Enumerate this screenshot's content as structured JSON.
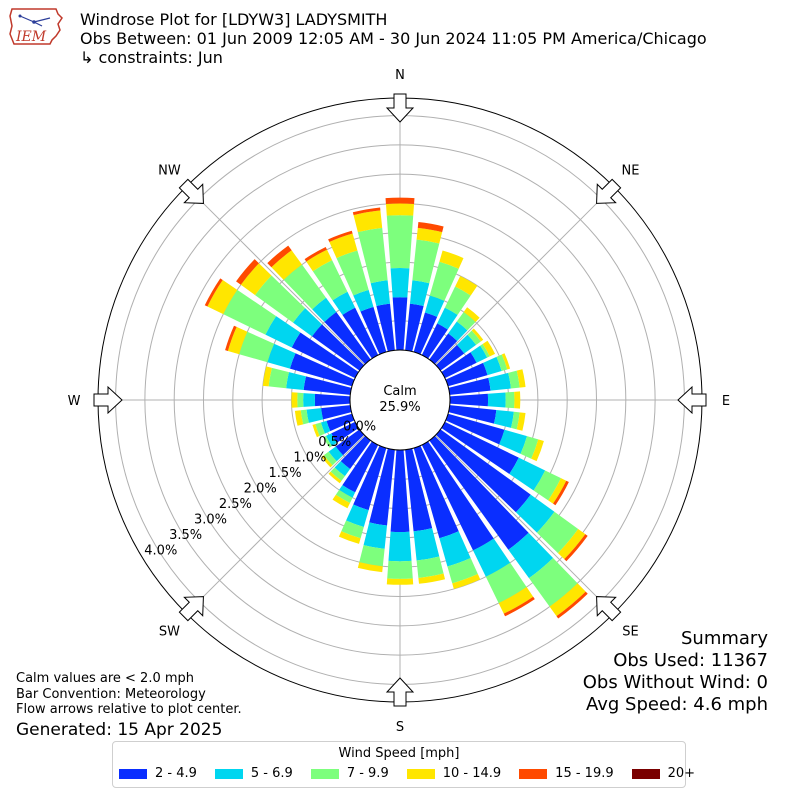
{
  "header": {
    "title_line1": "Windrose Plot for [LDYW3] LADYSMITH",
    "title_line2": "Obs Between: 01 Jun 2009 12:05 AM - 30 Jun 2024 11:05 PM America/Chicago",
    "title_line3": "↳ constraints: Jun",
    "logo_text": "IEM"
  },
  "summary": {
    "heading": "Summary",
    "obs_used": "Obs Used: 11367",
    "obs_without_wind": "Obs Without Wind: 0",
    "avg_speed": "Avg Speed: 4.6 mph"
  },
  "notes": {
    "calm_note": "Calm values are < 2.0 mph",
    "bar_convention": "Bar Convention: Meteorology",
    "flow_note": "Flow arrows relative to plot center.",
    "generated": "Generated: 15 Apr 2025"
  },
  "chart_data": {
    "type": "windrose",
    "calm_label": "Calm",
    "calm_percent": "25.9%",
    "radial_unit": "%",
    "radial_ticks": [
      "0.0%",
      "0.5%",
      "1.0%",
      "1.5%",
      "2.0%",
      "2.5%",
      "3.0%",
      "3.5%",
      "4.0%"
    ],
    "radial_max": 4.3,
    "direction_labels": [
      "N",
      "NE",
      "E",
      "SE",
      "S",
      "SW",
      "W",
      "NW"
    ],
    "directions_deg": [
      0,
      10,
      20,
      30,
      40,
      50,
      60,
      70,
      80,
      90,
      100,
      110,
      120,
      130,
      140,
      150,
      160,
      170,
      180,
      190,
      200,
      210,
      220,
      230,
      240,
      250,
      260,
      270,
      280,
      290,
      300,
      310,
      320,
      330,
      340,
      350
    ],
    "legend": {
      "title": "Wind Speed [mph]",
      "bins": [
        "2 - 4.9",
        "5 - 6.9",
        "7 - 9.9",
        "10 - 14.9",
        "15 - 19.9",
        "20+"
      ],
      "colors": [
        "#0a2eff",
        "#00d6f0",
        "#7dff7d",
        "#ffe600",
        "#ff4a00",
        "#7a0000"
      ]
    },
    "series_note": "cumulative percent at outer edge of each speed bin, per direction",
    "cumulative": [
      [
        0.9,
        1.4,
        2.3,
        2.5,
        2.6,
        2.6
      ],
      [
        0.8,
        1.2,
        1.9,
        2.1,
        2.2,
        2.2
      ],
      [
        0.7,
        1.0,
        1.6,
        1.8,
        1.8,
        1.8
      ],
      [
        0.6,
        0.9,
        1.3,
        1.5,
        1.5,
        1.5
      ],
      [
        0.55,
        0.8,
        1.0,
        1.1,
        1.1,
        1.1
      ],
      [
        0.5,
        0.75,
        0.85,
        0.9,
        0.9,
        0.9
      ],
      [
        0.6,
        0.8,
        0.85,
        0.95,
        0.95,
        0.95
      ],
      [
        0.7,
        0.95,
        1.05,
        1.1,
        1.1,
        1.1
      ],
      [
        0.7,
        1.05,
        1.2,
        1.3,
        1.3,
        1.3
      ],
      [
        0.65,
        0.95,
        1.1,
        1.2,
        1.2,
        1.2
      ],
      [
        0.8,
        1.1,
        1.2,
        1.3,
        1.3,
        1.3
      ],
      [
        1.0,
        1.4,
        1.6,
        1.7,
        1.7,
        1.7
      ],
      [
        1.4,
        1.9,
        2.2,
        2.3,
        2.35,
        2.35
      ],
      [
        1.9,
        2.4,
        2.9,
        3.05,
        3.1,
        3.1
      ],
      [
        2.3,
        2.9,
        3.5,
        3.7,
        3.75,
        3.75
      ],
      [
        2.0,
        2.5,
        3.0,
        3.2,
        3.25,
        3.25
      ],
      [
        1.6,
        2.1,
        2.4,
        2.5,
        2.5,
        2.5
      ],
      [
        1.4,
        1.9,
        2.2,
        2.3,
        2.3,
        2.3
      ],
      [
        1.4,
        1.9,
        2.2,
        2.3,
        2.3,
        2.3
      ],
      [
        1.3,
        1.7,
        2.0,
        2.1,
        2.1,
        2.1
      ],
      [
        1.1,
        1.4,
        1.6,
        1.7,
        1.7,
        1.7
      ],
      [
        0.9,
        1.0,
        1.1,
        1.2,
        1.2,
        1.2
      ],
      [
        0.6,
        0.75,
        0.85,
        0.9,
        0.9,
        0.9
      ],
      [
        0.5,
        0.65,
        0.75,
        0.8,
        0.8,
        0.8
      ],
      [
        0.45,
        0.55,
        0.6,
        0.6,
        0.6,
        0.6
      ],
      [
        0.45,
        0.55,
        0.65,
        0.7,
        0.7,
        0.7
      ],
      [
        0.5,
        0.75,
        0.85,
        0.95,
        0.95,
        0.95
      ],
      [
        0.6,
        0.8,
        0.9,
        1.0,
        1.0,
        1.0
      ],
      [
        0.8,
        1.1,
        1.4,
        1.5,
        1.5,
        1.5
      ],
      [
        1.1,
        1.5,
        2.0,
        2.2,
        2.25,
        2.25
      ],
      [
        1.2,
        1.7,
        2.5,
        2.8,
        2.85,
        2.85
      ],
      [
        1.0,
        1.4,
        2.2,
        2.5,
        2.6,
        2.6
      ],
      [
        1.0,
        1.3,
        2.0,
        2.3,
        2.4,
        2.4
      ],
      [
        0.9,
        1.2,
        1.8,
        2.0,
        2.05,
        2.05
      ],
      [
        0.8,
        1.1,
        1.8,
        2.1,
        2.15,
        2.15
      ],
      [
        0.8,
        1.2,
        2.1,
        2.4,
        2.45,
        2.45
      ]
    ]
  }
}
